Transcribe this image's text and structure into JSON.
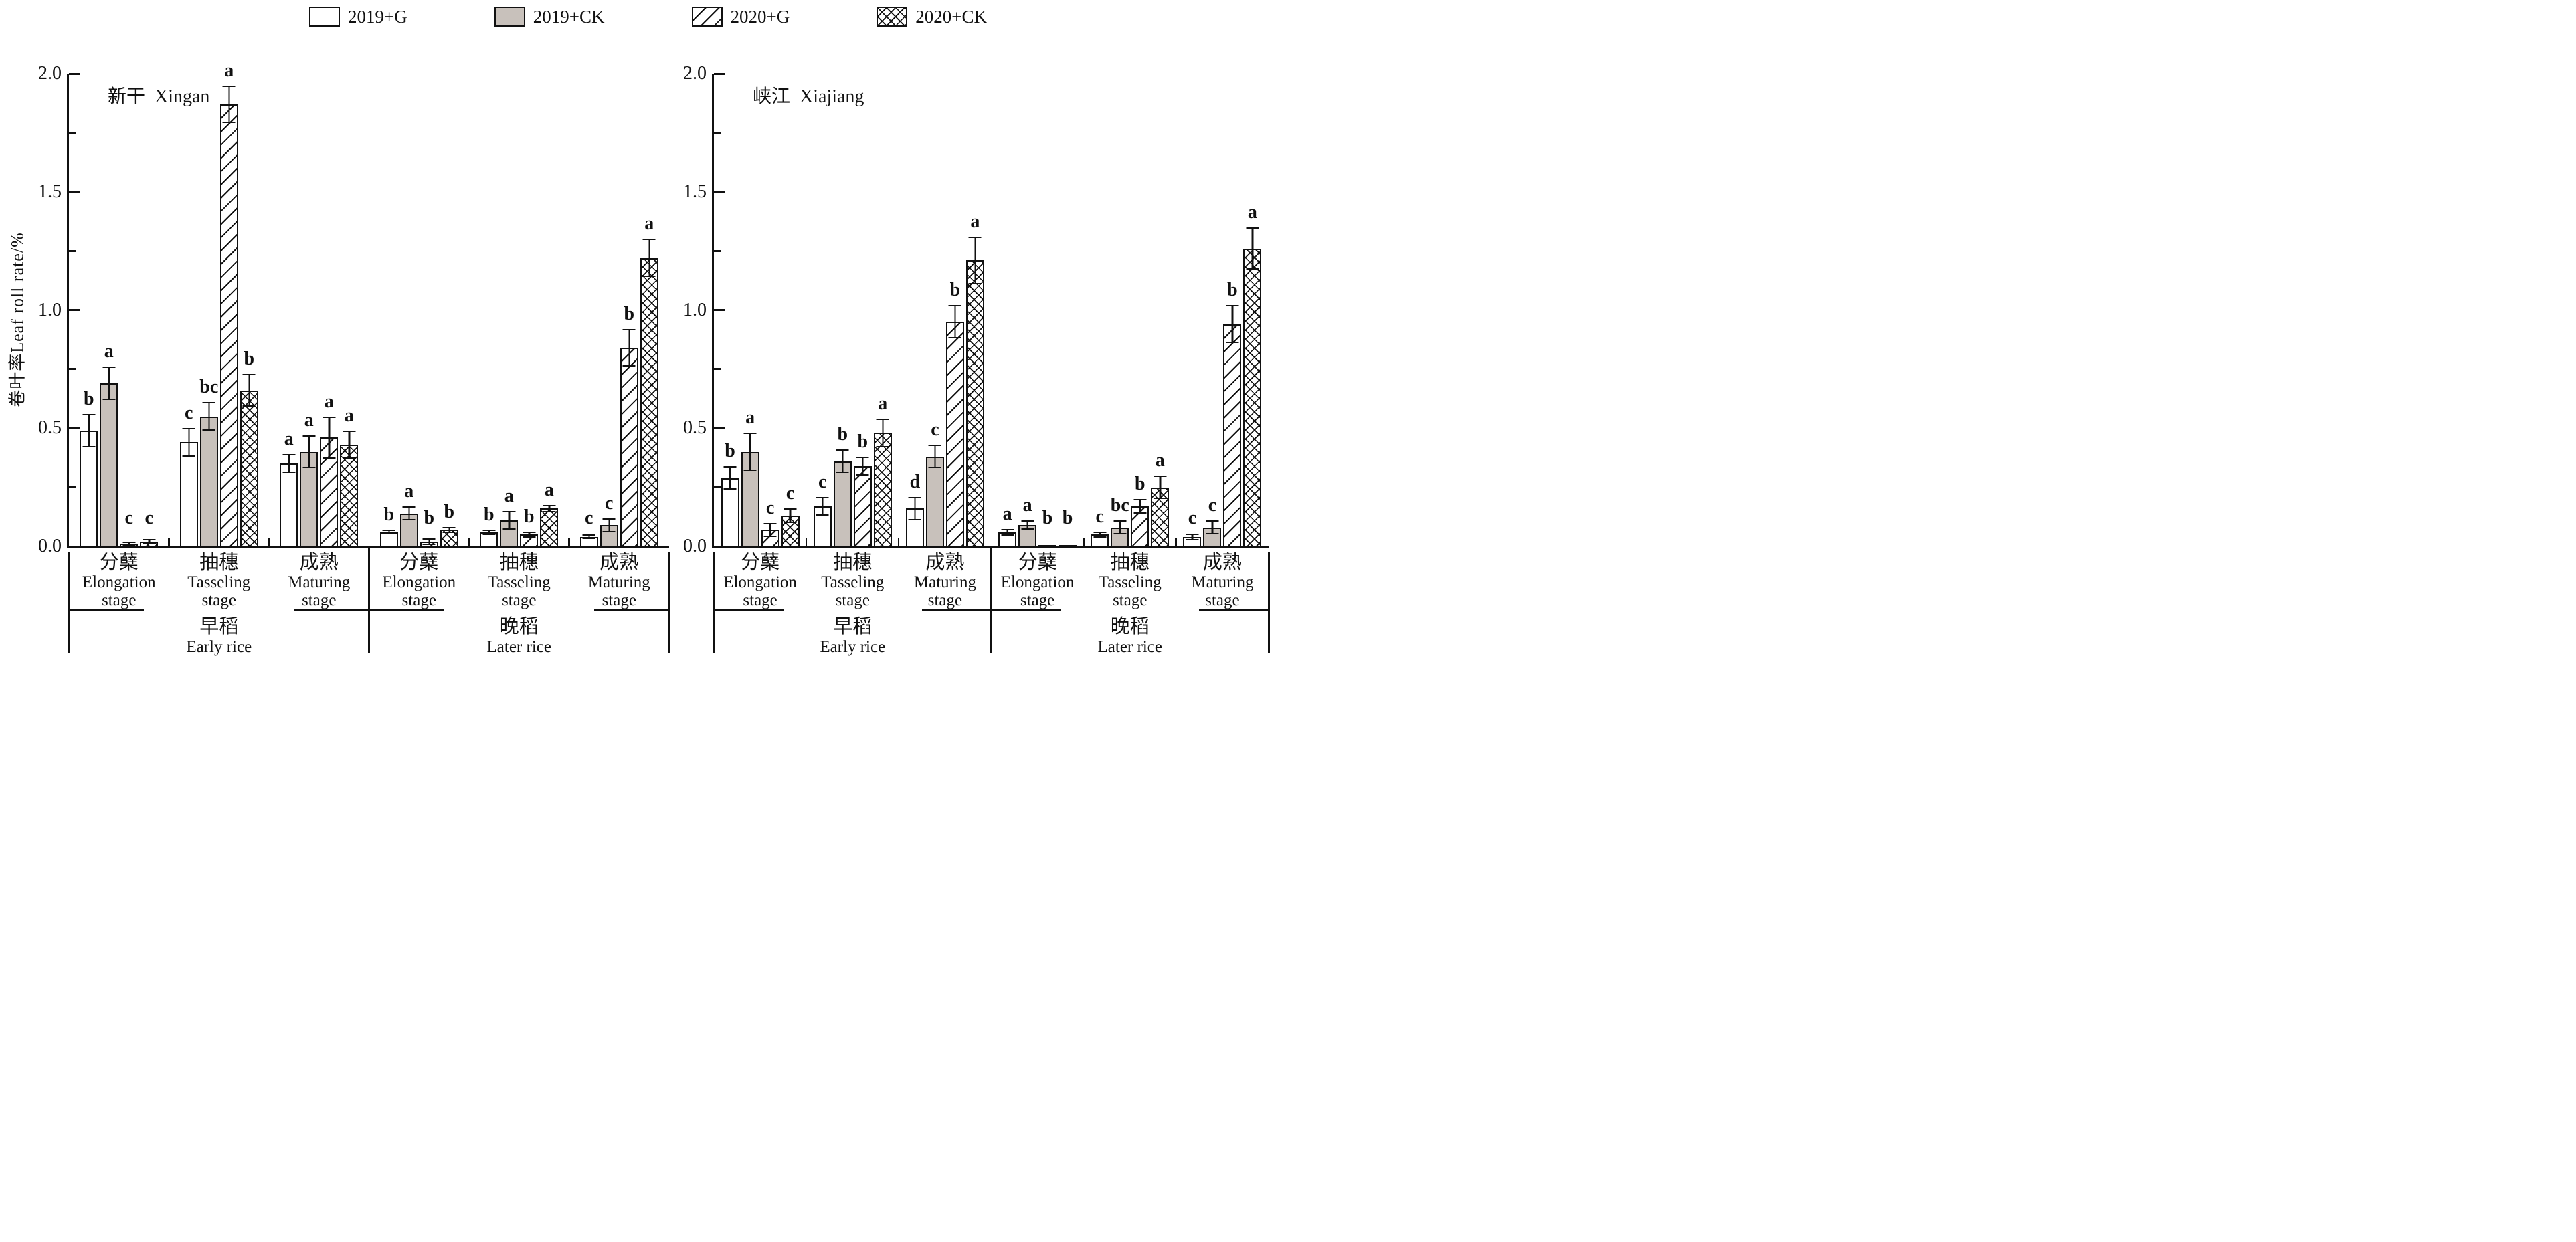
{
  "figure": {
    "legend": [
      {
        "label": "2019+G",
        "pattern": "plain"
      },
      {
        "label": "2019+CK",
        "pattern": "solid"
      },
      {
        "label": "2020+G",
        "pattern": "hatch"
      },
      {
        "label": "2020+CK",
        "pattern": "cross"
      }
    ],
    "colors": {
      "ink": "#111111",
      "gray_fill": "#c8c1bb",
      "background": "#ffffff"
    },
    "y_axis": {
      "title_cn": "卷叶率",
      "title_en": "Leaf roll rate/%",
      "tick_labels": [
        "0.0",
        "0.5",
        "1.0",
        "1.5",
        "2.0"
      ],
      "tick_values": [
        0,
        0.5,
        1.0,
        1.5,
        2.0
      ],
      "minor_step": 0.25,
      "max": 2.0
    }
  },
  "chart_data": {
    "type": "bar",
    "ylabel": "卷叶率Leaf roll rate/%",
    "ylim": [
      0,
      2.0
    ],
    "grid": false,
    "legend_position": "top",
    "series": [
      "2019+G",
      "2019+CK",
      "2020+G",
      "2020+CK"
    ],
    "panels": [
      {
        "title_cn": "新干",
        "title_en": "Xingan",
        "sections": [
          {
            "rice_cn": "早稻",
            "rice_en": "Early rice",
            "groups": [
              {
                "stage_cn": "分蘖",
                "stage_en": "Elongation",
                "stage_en2": "stage",
                "bars": [
                  {
                    "series": "2019+G",
                    "value": 0.49,
                    "error": 0.07,
                    "letter": "b"
                  },
                  {
                    "series": "2019+CK",
                    "value": 0.69,
                    "error": 0.07,
                    "letter": "a"
                  },
                  {
                    "series": "2020+G",
                    "value": 0.01,
                    "error": 0.01,
                    "letter": "c"
                  },
                  {
                    "series": "2020+CK",
                    "value": 0.02,
                    "error": 0.01,
                    "letter": "c"
                  }
                ]
              },
              {
                "stage_cn": "抽穗",
                "stage_en": "Tasseling",
                "stage_en2": "stage",
                "bars": [
                  {
                    "series": "2019+G",
                    "value": 0.44,
                    "error": 0.06,
                    "letter": "c"
                  },
                  {
                    "series": "2019+CK",
                    "value": 0.55,
                    "error": 0.06,
                    "letter": "bc"
                  },
                  {
                    "series": "2020+G",
                    "value": 1.87,
                    "error": 0.08,
                    "letter": "a"
                  },
                  {
                    "series": "2020+CK",
                    "value": 0.66,
                    "error": 0.07,
                    "letter": "b"
                  }
                ]
              },
              {
                "stage_cn": "成熟",
                "stage_en": "Maturing",
                "stage_en2": "stage",
                "bars": [
                  {
                    "series": "2019+G",
                    "value": 0.35,
                    "error": 0.04,
                    "letter": "a"
                  },
                  {
                    "series": "2019+CK",
                    "value": 0.4,
                    "error": 0.07,
                    "letter": "a"
                  },
                  {
                    "series": "2020+G",
                    "value": 0.46,
                    "error": 0.09,
                    "letter": "a"
                  },
                  {
                    "series": "2020+CK",
                    "value": 0.43,
                    "error": 0.06,
                    "letter": "a"
                  }
                ]
              }
            ]
          },
          {
            "rice_cn": "晚稻",
            "rice_en": "Later rice",
            "groups": [
              {
                "stage_cn": "分蘖",
                "stage_en": "Elongation",
                "stage_en2": "stage",
                "bars": [
                  {
                    "series": "2019+G",
                    "value": 0.06,
                    "error": 0.01,
                    "letter": "b"
                  },
                  {
                    "series": "2019+CK",
                    "value": 0.14,
                    "error": 0.03,
                    "letter": "a"
                  },
                  {
                    "series": "2020+G",
                    "value": 0.02,
                    "error": 0.015,
                    "letter": "b"
                  },
                  {
                    "series": "2020+CK",
                    "value": 0.07,
                    "error": 0.012,
                    "letter": "b"
                  }
                ]
              },
              {
                "stage_cn": "抽穗",
                "stage_en": "Tasseling",
                "stage_en2": "stage",
                "bars": [
                  {
                    "series": "2019+G",
                    "value": 0.06,
                    "error": 0.012,
                    "letter": "b"
                  },
                  {
                    "series": "2019+CK",
                    "value": 0.11,
                    "error": 0.04,
                    "letter": "a"
                  },
                  {
                    "series": "2020+G",
                    "value": 0.05,
                    "error": 0.012,
                    "letter": "b"
                  },
                  {
                    "series": "2020+CK",
                    "value": 0.16,
                    "error": 0.015,
                    "letter": "a"
                  }
                ]
              },
              {
                "stage_cn": "成熟",
                "stage_en": "Maturing",
                "stage_en2": "stage",
                "bars": [
                  {
                    "series": "2019+G",
                    "value": 0.04,
                    "error": 0.01,
                    "letter": "c"
                  },
                  {
                    "series": "2019+CK",
                    "value": 0.09,
                    "error": 0.03,
                    "letter": "c"
                  },
                  {
                    "series": "2020+G",
                    "value": 0.84,
                    "error": 0.08,
                    "letter": "b"
                  },
                  {
                    "series": "2020+CK",
                    "value": 1.22,
                    "error": 0.08,
                    "letter": "a"
                  }
                ]
              }
            ]
          }
        ]
      },
      {
        "title_cn": "峡江",
        "title_en": "Xiajiang",
        "sections": [
          {
            "rice_cn": "早稻",
            "rice_en": "Early rice",
            "groups": [
              {
                "stage_cn": "分蘖",
                "stage_en": "Elongation",
                "stage_en2": "stage",
                "bars": [
                  {
                    "series": "2019+G",
                    "value": 0.29,
                    "error": 0.05,
                    "letter": "b"
                  },
                  {
                    "series": "2019+CK",
                    "value": 0.4,
                    "error": 0.08,
                    "letter": "a"
                  },
                  {
                    "series": "2020+G",
                    "value": 0.07,
                    "error": 0.03,
                    "letter": "c"
                  },
                  {
                    "series": "2020+CK",
                    "value": 0.13,
                    "error": 0.03,
                    "letter": "c"
                  }
                ]
              },
              {
                "stage_cn": "抽穗",
                "stage_en": "Tasseling",
                "stage_en2": "stage",
                "bars": [
                  {
                    "series": "2019+G",
                    "value": 0.17,
                    "error": 0.04,
                    "letter": "c"
                  },
                  {
                    "series": "2019+CK",
                    "value": 0.36,
                    "error": 0.05,
                    "letter": "b"
                  },
                  {
                    "series": "2020+G",
                    "value": 0.34,
                    "error": 0.04,
                    "letter": "b"
                  },
                  {
                    "series": "2020+CK",
                    "value": 0.48,
                    "error": 0.06,
                    "letter": "a"
                  }
                ]
              },
              {
                "stage_cn": "成熟",
                "stage_en": "Maturing",
                "stage_en2": "stage",
                "bars": [
                  {
                    "series": "2019+G",
                    "value": 0.16,
                    "error": 0.05,
                    "letter": "d"
                  },
                  {
                    "series": "2019+CK",
                    "value": 0.38,
                    "error": 0.05,
                    "letter": "c"
                  },
                  {
                    "series": "2020+G",
                    "value": 0.95,
                    "error": 0.07,
                    "letter": "b"
                  },
                  {
                    "series": "2020+CK",
                    "value": 1.21,
                    "error": 0.1,
                    "letter": "a"
                  }
                ]
              }
            ]
          },
          {
            "rice_cn": "晚稻",
            "rice_en": "Later rice",
            "groups": [
              {
                "stage_cn": "分蘖",
                "stage_en": "Elongation",
                "stage_en2": "stage",
                "bars": [
                  {
                    "series": "2019+G",
                    "value": 0.06,
                    "error": 0.015,
                    "letter": "a"
                  },
                  {
                    "series": "2019+CK",
                    "value": 0.09,
                    "error": 0.02,
                    "letter": "a"
                  },
                  {
                    "series": "2020+G",
                    "value": 0.005,
                    "error": 0,
                    "letter": "b"
                  },
                  {
                    "series": "2020+CK",
                    "value": 0.005,
                    "error": 0,
                    "letter": "b"
                  }
                ]
              },
              {
                "stage_cn": "抽穗",
                "stage_en": "Tasseling",
                "stage_en2": "stage",
                "bars": [
                  {
                    "series": "2019+G",
                    "value": 0.05,
                    "error": 0.012,
                    "letter": "c"
                  },
                  {
                    "series": "2019+CK",
                    "value": 0.08,
                    "error": 0.03,
                    "letter": "bc"
                  },
                  {
                    "series": "2020+G",
                    "value": 0.17,
                    "error": 0.03,
                    "letter": "b"
                  },
                  {
                    "series": "2020+CK",
                    "value": 0.25,
                    "error": 0.05,
                    "letter": "a"
                  }
                ]
              },
              {
                "stage_cn": "成熟",
                "stage_en": "Maturing",
                "stage_en2": "stage",
                "bars": [
                  {
                    "series": "2019+G",
                    "value": 0.04,
                    "error": 0.015,
                    "letter": "c"
                  },
                  {
                    "series": "2019+CK",
                    "value": 0.08,
                    "error": 0.03,
                    "letter": "c"
                  },
                  {
                    "series": "2020+G",
                    "value": 0.94,
                    "error": 0.08,
                    "letter": "b"
                  },
                  {
                    "series": "2020+CK",
                    "value": 1.26,
                    "error": 0.09,
                    "letter": "a"
                  }
                ]
              }
            ]
          }
        ]
      }
    ]
  }
}
